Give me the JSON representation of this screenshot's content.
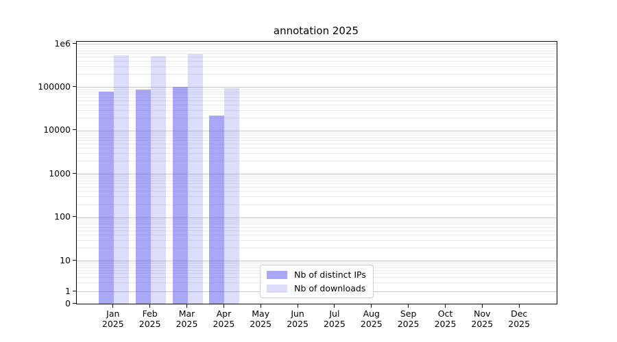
{
  "title": "annotation 2025",
  "legend": {
    "items": [
      {
        "label": "Nb of distinct IPs",
        "color": "rgba(70,70,235,0.47)"
      },
      {
        "label": "Nb of downloads",
        "color": "rgba(70,70,235,0.19)"
      }
    ]
  },
  "axes": {
    "y_ticks": [
      {
        "label": "1e6",
        "value": 1000000
      },
      {
        "label": "100000",
        "value": 100000
      },
      {
        "label": "10000",
        "value": 10000
      },
      {
        "label": "1000",
        "value": 1000
      },
      {
        "label": "100",
        "value": 100
      },
      {
        "label": "10",
        "value": 10
      },
      {
        "label": "1",
        "value": 1
      },
      {
        "label": "0",
        "value": 0
      }
    ],
    "x_ticks": [
      {
        "month": "Jan",
        "year": "2025"
      },
      {
        "month": "Feb",
        "year": "2025"
      },
      {
        "month": "Mar",
        "year": "2025"
      },
      {
        "month": "Apr",
        "year": "2025"
      },
      {
        "month": "May",
        "year": "2025"
      },
      {
        "month": "Jun",
        "year": "2025"
      },
      {
        "month": "Jul",
        "year": "2025"
      },
      {
        "month": "Aug",
        "year": "2025"
      },
      {
        "month": "Sep",
        "year": "2025"
      },
      {
        "month": "Oct",
        "year": "2025"
      },
      {
        "month": "Nov",
        "year": "2025"
      },
      {
        "month": "Dec",
        "year": "2025"
      }
    ]
  },
  "chart_data": {
    "type": "bar",
    "title": "annotation 2025",
    "categories": [
      "Jan 2025",
      "Feb 2025",
      "Mar 2025",
      "Apr 2025",
      "May 2025",
      "Jun 2025",
      "Jul 2025",
      "Aug 2025",
      "Sep 2025",
      "Oct 2025",
      "Nov 2025",
      "Dec 2025"
    ],
    "series": [
      {
        "name": "Nb of distinct IPs",
        "color": "rgba(70,70,235,0.47)",
        "values": [
          80000,
          87000,
          100000,
          22000,
          null,
          null,
          null,
          null,
          null,
          null,
          null,
          null
        ]
      },
      {
        "name": "Nb of downloads",
        "color": "rgba(70,70,235,0.19)",
        "values": [
          550000,
          520000,
          580000,
          96000,
          null,
          null,
          null,
          null,
          null,
          null,
          null,
          null
        ]
      }
    ],
    "yscale": "log (with 0 baseline)",
    "ylim": [
      0,
      1000000
    ],
    "y_tick_labels": [
      "1e6",
      "100000",
      "10000",
      "1000",
      "100",
      "10",
      "1",
      "0"
    ],
    "grid": "both-major-and-minor-horizontal",
    "legend_position": "lower center"
  }
}
